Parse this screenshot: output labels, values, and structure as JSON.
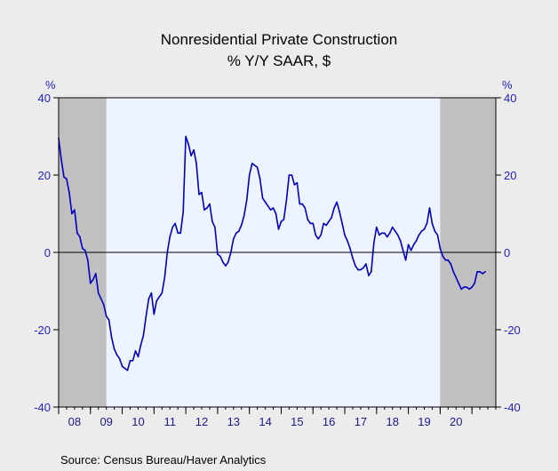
{
  "chart_data": {
    "type": "line",
    "title": "Nonresidential Private Construction",
    "subtitle": "% Y/Y   SAAR, $",
    "y_unit_left": "%",
    "y_unit_right": "%",
    "ylim": [
      -40,
      40
    ],
    "yticks": [
      40,
      20,
      0,
      -20,
      -40
    ],
    "xlim": [
      2008.0,
      2021.75
    ],
    "x_tick_labels": [
      "08",
      "09",
      "10",
      "11",
      "12",
      "13",
      "14",
      "15",
      "16",
      "17",
      "18",
      "19",
      "20"
    ],
    "grid": false,
    "zero_line": true,
    "recessions": [
      [
        2008.0,
        2009.5
      ],
      [
        2020.0,
        2021.75
      ]
    ],
    "source": "Source:   Census Bureau/Haver Analytics",
    "colors": {
      "line": "#0000c0",
      "plot_bg": "#eef4ff",
      "recession": "#c0c0c0",
      "axis_text": "#1f1fc0",
      "page_bg": "#ececec"
    },
    "series": [
      {
        "x": [
          2008.0,
          2008.083,
          2008.167,
          2008.25,
          2008.333,
          2008.417,
          2008.5,
          2008.583,
          2008.667,
          2008.75,
          2008.833,
          2008.917,
          2009.0,
          2009.083,
          2009.167,
          2009.25,
          2009.333,
          2009.417,
          2009.5,
          2009.583,
          2009.667,
          2009.75,
          2009.833,
          2009.917,
          2010.0,
          2010.083,
          2010.167,
          2010.25,
          2010.333,
          2010.417,
          2010.5,
          2010.583,
          2010.667,
          2010.75,
          2010.833,
          2010.917,
          2011.0,
          2011.083,
          2011.167,
          2011.25,
          2011.333,
          2011.417,
          2011.5,
          2011.583,
          2011.667,
          2011.75,
          2011.833,
          2011.917,
          2012.0,
          2012.083,
          2012.167,
          2012.25,
          2012.333,
          2012.417,
          2012.5,
          2012.583,
          2012.667,
          2012.75,
          2012.833,
          2012.917,
          2013.0,
          2013.083,
          2013.167,
          2013.25,
          2013.333,
          2013.417,
          2013.5,
          2013.583,
          2013.667,
          2013.75,
          2013.833,
          2013.917,
          2014.0,
          2014.083,
          2014.167,
          2014.25,
          2014.333,
          2014.417,
          2014.5,
          2014.583,
          2014.667,
          2014.75,
          2014.833,
          2014.917,
          2015.0,
          2015.083,
          2015.167,
          2015.25,
          2015.333,
          2015.417,
          2015.5,
          2015.583,
          2015.667,
          2015.75,
          2015.833,
          2015.917,
          2016.0,
          2016.083,
          2016.167,
          2016.25,
          2016.333,
          2016.417,
          2016.5,
          2016.583,
          2016.667,
          2016.75,
          2016.833,
          2016.917,
          2017.0,
          2017.083,
          2017.167,
          2017.25,
          2017.333,
          2017.417,
          2017.5,
          2017.583,
          2017.667,
          2017.75,
          2017.833,
          2017.917,
          2018.0,
          2018.083,
          2018.167,
          2018.25,
          2018.333,
          2018.417,
          2018.5,
          2018.583,
          2018.667,
          2018.75,
          2018.833,
          2018.917,
          2019.0,
          2019.083,
          2019.167,
          2019.25,
          2019.333,
          2019.417,
          2019.5,
          2019.583,
          2019.667,
          2019.75,
          2019.833,
          2019.917,
          2020.0,
          2020.083,
          2020.167,
          2020.25,
          2020.333,
          2020.417,
          2020.5,
          2020.583,
          2020.667,
          2020.75,
          2020.833,
          2020.917,
          2021.0,
          2021.083,
          2021.167,
          2021.25,
          2021.333,
          2021.417
        ],
        "y": [
          29.5,
          24.0,
          19.5,
          19.0,
          15.5,
          10.0,
          11.0,
          5.0,
          4.0,
          1.0,
          0.5,
          -2.0,
          -8.0,
          -7.0,
          -5.5,
          -10.5,
          -12.0,
          -13.5,
          -16.5,
          -17.5,
          -22.0,
          -25.0,
          -26.5,
          -27.5,
          -29.5,
          -30.0,
          -30.5,
          -28.0,
          -28.0,
          -25.5,
          -27.0,
          -24.0,
          -21.5,
          -16.5,
          -12.0,
          -10.5,
          -16.0,
          -12.5,
          -11.5,
          -10.5,
          -6.5,
          0.0,
          4.0,
          6.5,
          7.5,
          5.0,
          5.0,
          10.5,
          30.0,
          28.0,
          25.0,
          26.5,
          23.0,
          15.0,
          15.5,
          11.0,
          11.5,
          12.5,
          8.0,
          6.5,
          -0.5,
          -1.0,
          -2.5,
          -3.5,
          -2.5,
          0.0,
          3.5,
          5.0,
          5.5,
          7.0,
          9.5,
          13.5,
          20.0,
          23.0,
          22.5,
          22.0,
          19.0,
          14.0,
          13.0,
          12.0,
          11.0,
          11.5,
          10.0,
          6.0,
          8.0,
          8.5,
          13.5,
          20.0,
          20.0,
          17.5,
          18.0,
          12.5,
          12.5,
          11.5,
          8.5,
          7.5,
          7.5,
          4.5,
          3.5,
          4.5,
          7.5,
          7.0,
          8.0,
          9.0,
          11.5,
          13.0,
          10.5,
          7.5,
          4.5,
          3.0,
          1.0,
          -1.5,
          -3.5,
          -4.5,
          -4.5,
          -4.0,
          -3.0,
          -6.0,
          -5.0,
          2.5,
          6.5,
          4.5,
          5.0,
          5.0,
          4.0,
          5.0,
          6.5,
          5.5,
          4.5,
          3.0,
          0.5,
          -2.0,
          2.0,
          0.5,
          2.0,
          3.0,
          4.5,
          5.5,
          6.0,
          7.5,
          11.5,
          7.5,
          5.5,
          4.5,
          1.0,
          -1.0,
          -2.0,
          -2.0,
          -3.0,
          -5.0,
          -6.5,
          -8.0,
          -9.5,
          -9.0,
          -9.0,
          -9.5,
          -9.0,
          -8.0,
          -5.0,
          -5.0,
          -5.5,
          -5.0
        ]
      }
    ]
  }
}
